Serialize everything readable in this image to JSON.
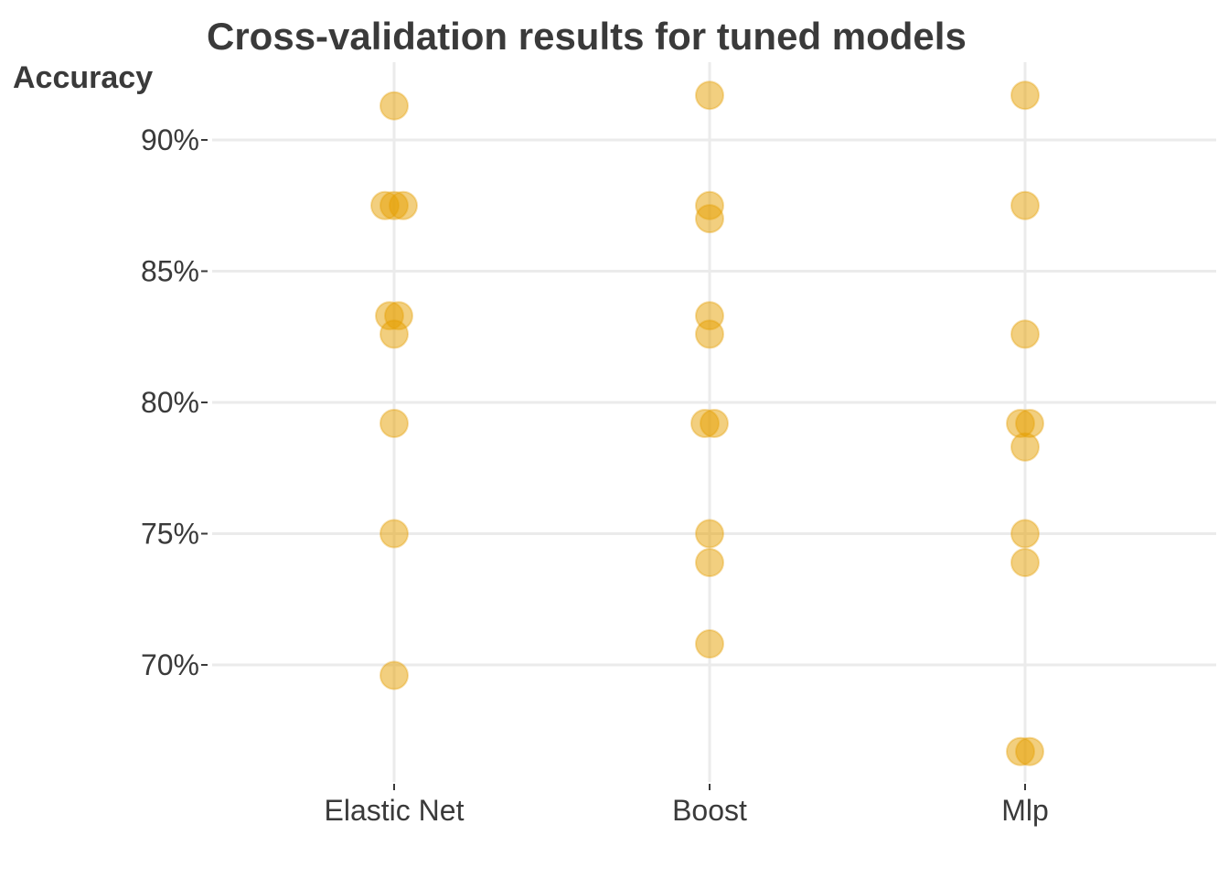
{
  "chart_data": {
    "type": "scatter",
    "title": "Cross-validation results for tuned models",
    "ylabel": "Accuracy",
    "xlabel": "",
    "categories": [
      "Elastic Net",
      "Boost",
      "Mlp"
    ],
    "yticks": [
      70,
      75,
      80,
      85,
      90
    ],
    "ytick_labels": [
      "70%",
      "75%",
      "80%",
      "85%",
      "90%"
    ],
    "ylim": [
      65.5,
      92.8
    ],
    "grid": true,
    "point_color": "#E69F00",
    "series": [
      {
        "category": "Elastic Net",
        "values": [
          91.3,
          87.5,
          87.5,
          87.5,
          83.3,
          83.3,
          82.6,
          79.2,
          75.0,
          69.6
        ]
      },
      {
        "category": "Boost",
        "values": [
          91.7,
          87.5,
          87.0,
          83.3,
          82.6,
          79.2,
          79.2,
          75.0,
          73.9,
          70.8
        ]
      },
      {
        "category": "Mlp",
        "values": [
          91.7,
          87.5,
          82.6,
          79.2,
          79.2,
          78.3,
          75.0,
          73.9,
          66.7,
          66.7
        ]
      }
    ]
  }
}
